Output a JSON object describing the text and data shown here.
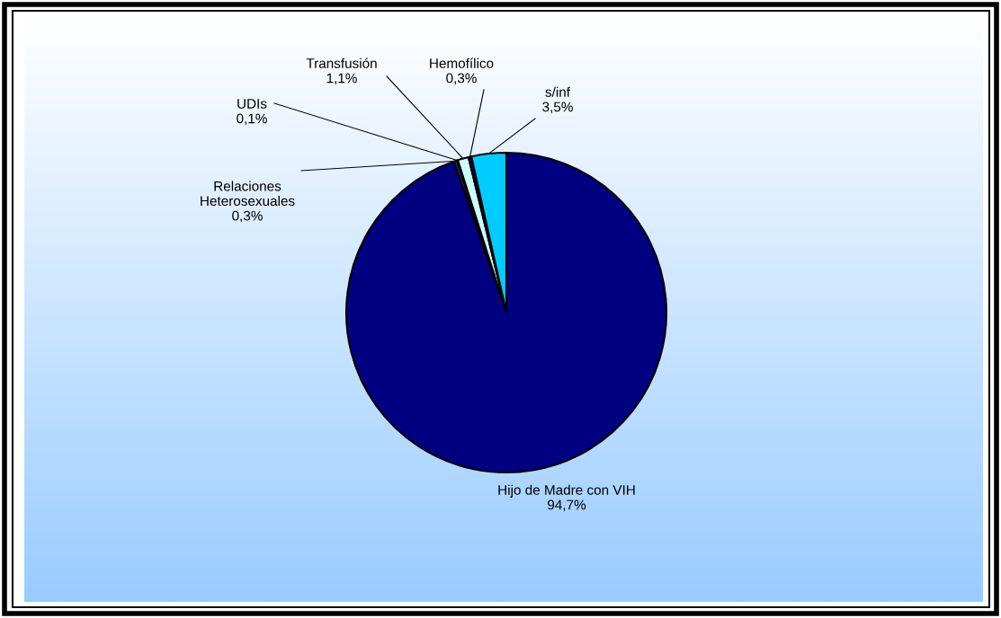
{
  "chart_data": {
    "type": "pie",
    "categories": [
      "Hijo de Madre con VIH",
      "Relaciones Heterosexuales",
      "UDIs",
      "Transfusión",
      "Hemofílico",
      "s/inf"
    ],
    "values": [
      94.7,
      0.3,
      0.1,
      1.1,
      0.3,
      3.5
    ],
    "value_labels": [
      "94,7%",
      "0,3%",
      "0,1%",
      "1,1%",
      "0,3%",
      "3,5%"
    ],
    "colors": [
      "#000080",
      "#333399",
      "#000000",
      "#ccffff",
      "#000080",
      "#00ccff"
    ],
    "legend": false
  }
}
